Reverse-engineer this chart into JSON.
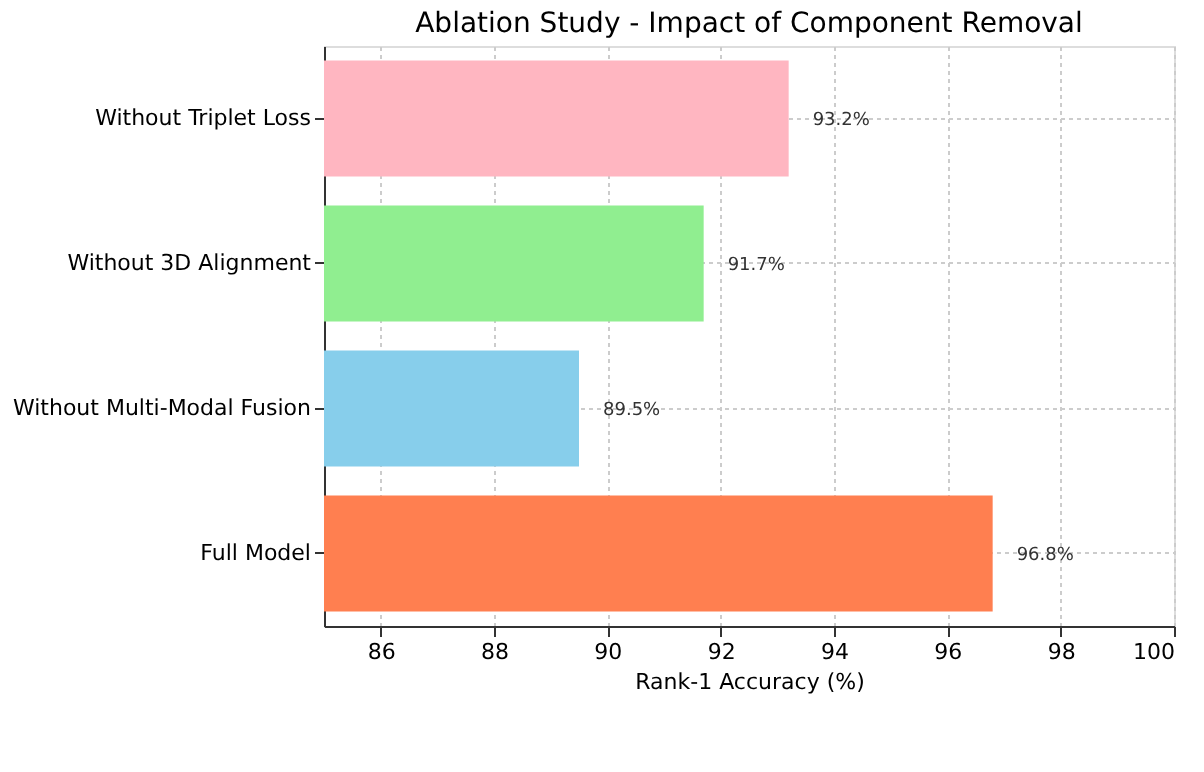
{
  "chart_data": {
    "type": "bar",
    "orientation": "horizontal",
    "title": "Ablation Study - Impact of Component Removal",
    "xlabel": "Rank-1 Accuracy (%)",
    "categories": [
      "Without Triplet Loss",
      "Without 3D Alignment",
      "Without Multi-Modal Fusion",
      "Full Model"
    ],
    "values": [
      93.2,
      91.7,
      89.5,
      96.8
    ],
    "colors": [
      "#ffb6c1",
      "#90ee90",
      "#87ceeb",
      "#ff7f50"
    ],
    "value_labels": [
      "93.2%",
      "91.7%",
      "89.5%",
      "96.8%"
    ],
    "xlim": [
      85,
      100
    ],
    "xticks": [
      86,
      88,
      90,
      92,
      94,
      96,
      98,
      100
    ],
    "grid": true
  }
}
